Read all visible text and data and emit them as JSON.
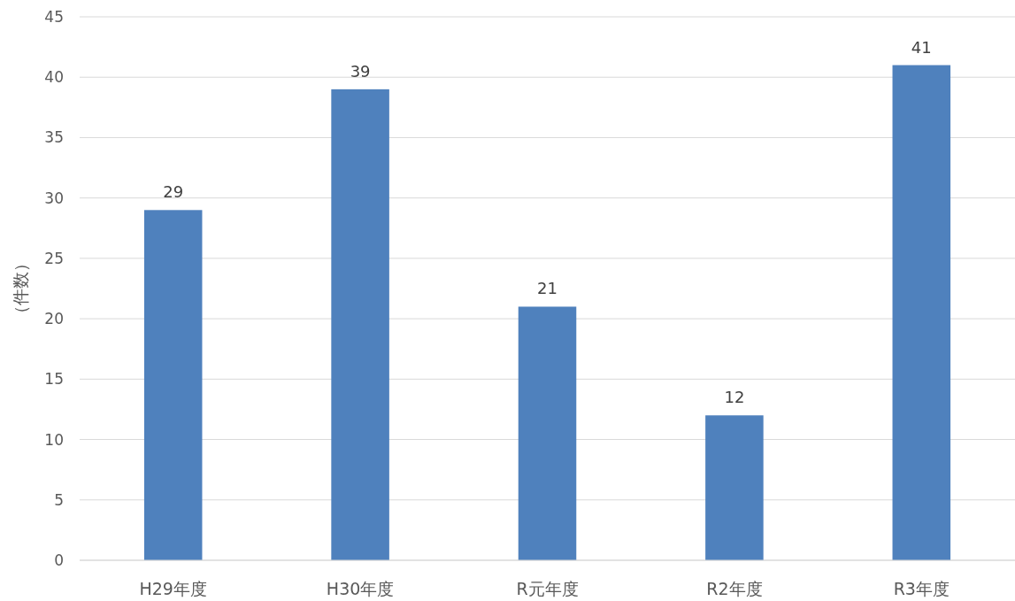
{
  "chart_data": {
    "type": "bar",
    "ylabel": "（件数）",
    "categories": [
      "H29年度",
      "H30年度",
      "R元年度",
      "R2年度",
      "R3年度"
    ],
    "values": [
      29,
      39,
      21,
      12,
      41
    ],
    "color": "#4f81bd",
    "ylim": [
      0,
      45
    ],
    "yticks": [
      0,
      5,
      10,
      15,
      20,
      25,
      30,
      35,
      40,
      45
    ],
    "grid": "y",
    "data_labels": true
  }
}
